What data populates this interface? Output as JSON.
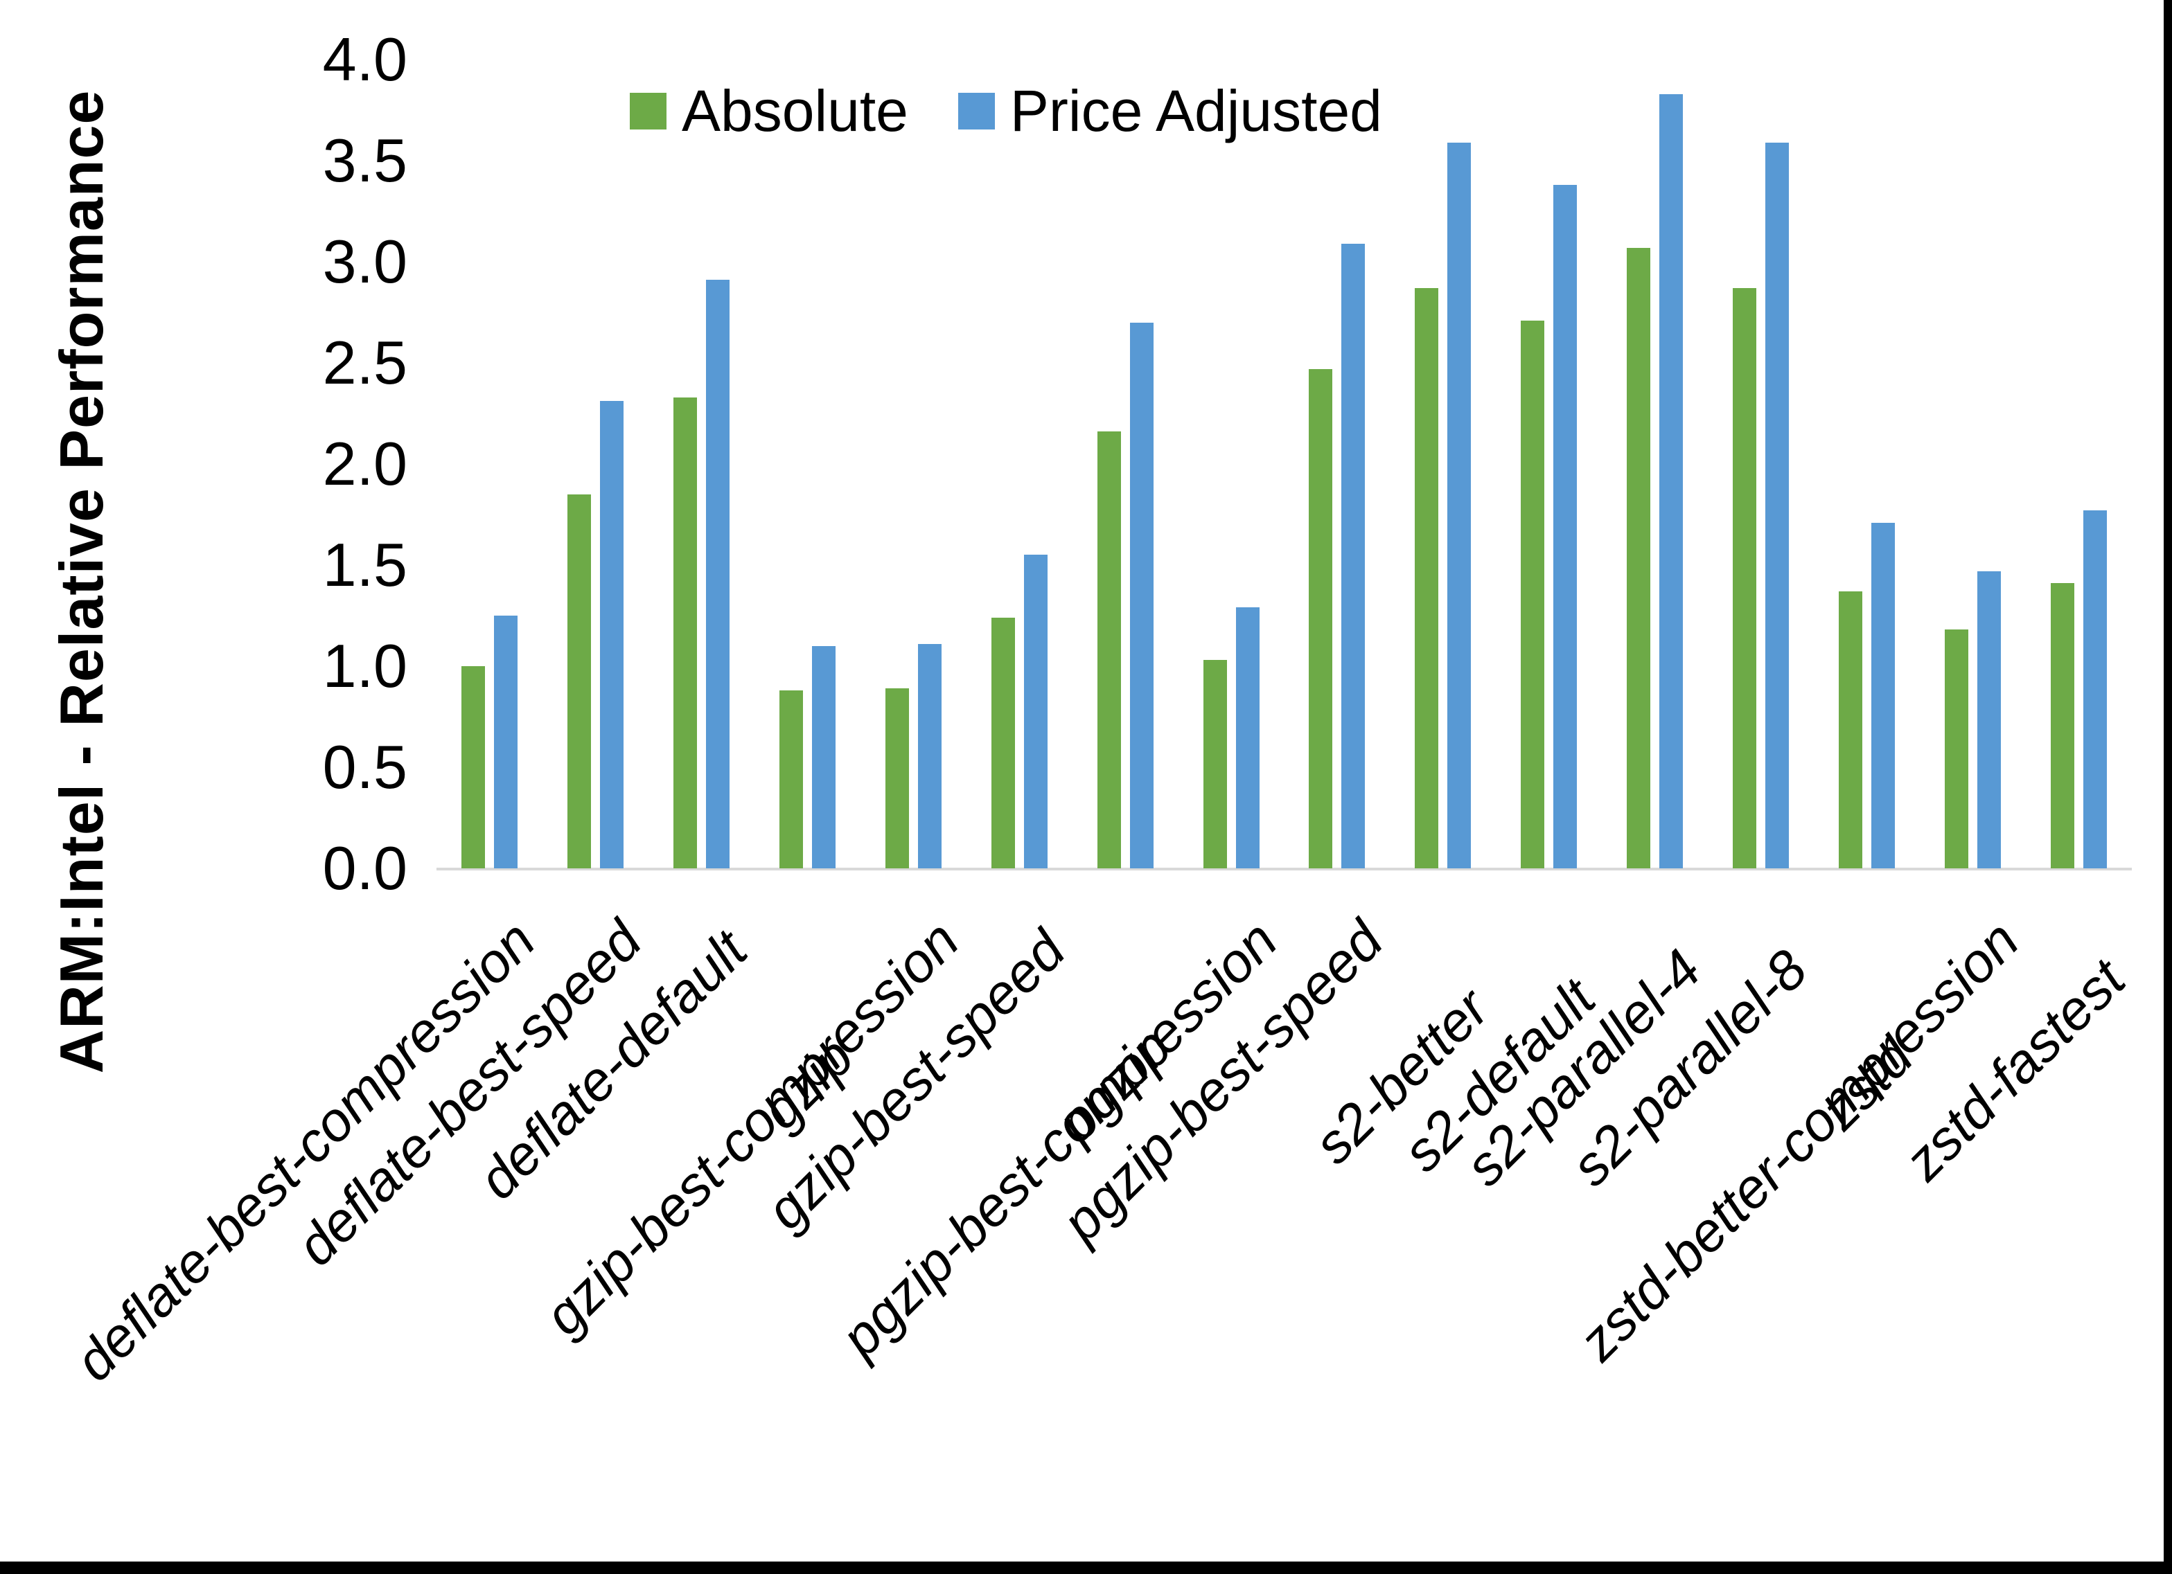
{
  "chart_data": {
    "type": "bar",
    "title": "",
    "xlabel": "",
    "ylabel": "ARM:Intel - Relative Performance",
    "ylim": [
      0.0,
      4.0
    ],
    "ytick_step": 0.5,
    "ytick_labels": [
      "0.0",
      "0.5",
      "1.0",
      "1.5",
      "2.0",
      "2.5",
      "3.0",
      "3.5",
      "4.0"
    ],
    "grid": false,
    "legend_position": "top-center",
    "axis_line_color": "#D9D9D9",
    "categories": [
      "deflate-best-compression",
      "deflate-best-speed",
      "deflate-default",
      "gzip",
      "gzip-best-compression",
      "gzip-best-speed",
      "pgzip",
      "pgzip-best-compression",
      "pgzip-best-speed",
      "s2-better",
      "s2-default",
      "s2-parallel-4",
      "s2-parallel-8",
      "zstd",
      "zstd-better-compression",
      "zstd-fastest"
    ],
    "series": [
      {
        "name": "Absolute",
        "color": "#6DAA47",
        "values": [
          1.0,
          1.85,
          2.33,
          0.88,
          0.89,
          1.24,
          2.16,
          1.03,
          2.47,
          2.87,
          2.71,
          3.07,
          2.87,
          1.37,
          1.18,
          1.41
        ]
      },
      {
        "name": "Price Adjusted",
        "color": "#5899D4",
        "values": [
          1.25,
          2.31,
          2.91,
          1.1,
          1.11,
          1.55,
          2.7,
          1.29,
          3.09,
          3.59,
          3.38,
          3.83,
          3.59,
          1.71,
          1.47,
          1.77
        ]
      }
    ]
  }
}
